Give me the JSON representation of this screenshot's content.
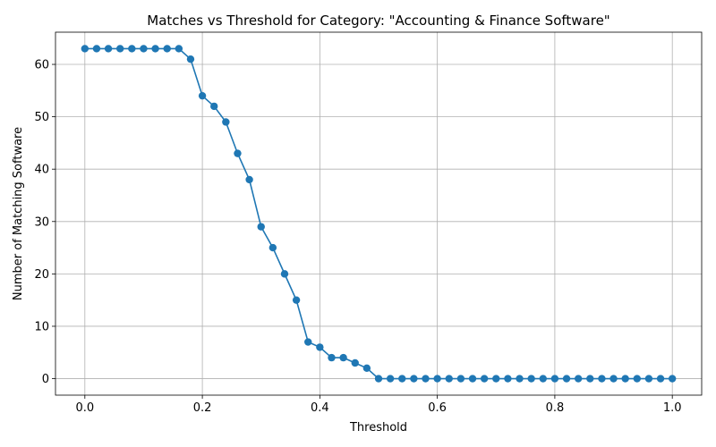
{
  "chart_data": {
    "type": "line",
    "title": "Matches vs Threshold for Category: \"Accounting & Finance Software\"",
    "xlabel": "Threshold",
    "ylabel": "Number of Matching Software",
    "xlim": [
      -0.05,
      1.05
    ],
    "ylim": [
      -3.15,
      66.15
    ],
    "x_ticks": [
      "0.0",
      "0.2",
      "0.4",
      "0.6",
      "0.8",
      "1.0"
    ],
    "y_ticks": [
      "0",
      "10",
      "20",
      "30",
      "40",
      "50",
      "60"
    ],
    "grid": true,
    "line_color": "#1f77b4",
    "marker": "circle",
    "series": [
      {
        "x": [
          0.0,
          0.02,
          0.04,
          0.06,
          0.08,
          0.1,
          0.12,
          0.14,
          0.16,
          0.18,
          0.2,
          0.22,
          0.24,
          0.26,
          0.28,
          0.3,
          0.32,
          0.34,
          0.36,
          0.38,
          0.4,
          0.42,
          0.44,
          0.46,
          0.48,
          0.5,
          0.52,
          0.54,
          0.56,
          0.58,
          0.6,
          0.62,
          0.64,
          0.66,
          0.68,
          0.7,
          0.72,
          0.74,
          0.76,
          0.78,
          0.8,
          0.82,
          0.84,
          0.86,
          0.88,
          0.9,
          0.92,
          0.94,
          0.96,
          0.98,
          1.0
        ],
        "y": [
          63,
          63,
          63,
          63,
          63,
          63,
          63,
          63,
          63,
          61,
          54,
          52,
          49,
          43,
          38,
          29,
          25,
          20,
          15,
          7,
          6,
          4,
          4,
          3,
          2,
          0,
          0,
          0,
          0,
          0,
          0,
          0,
          0,
          0,
          0,
          0,
          0,
          0,
          0,
          0,
          0,
          0,
          0,
          0,
          0,
          0,
          0,
          0,
          0,
          0,
          0
        ]
      }
    ]
  }
}
